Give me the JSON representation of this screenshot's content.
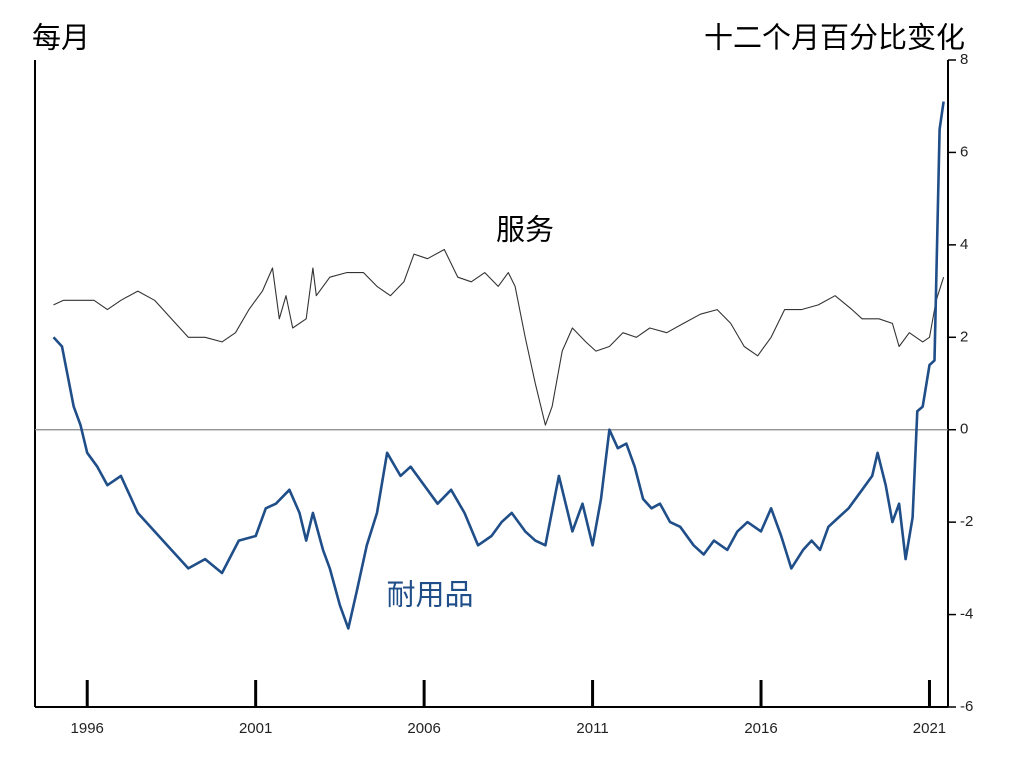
{
  "chart_data": {
    "type": "line",
    "subtitle": "每月",
    "ylabel": "十二个月百分比变化",
    "xlim": [
      1994.45,
      2021.55
    ],
    "xticks": [
      1996,
      2001,
      2006,
      2011,
      2016,
      2021
    ],
    "ylim": [
      -6,
      8
    ],
    "yticks": [
      -6,
      -4,
      -2,
      0,
      2,
      4,
      6,
      8
    ],
    "series": [
      {
        "name": "服务",
        "color": "#333333",
        "x": [
          1995.0,
          1995.3,
          1995.7,
          1996.2,
          1996.6,
          1997.0,
          1997.5,
          1998.0,
          1998.5,
          1999.0,
          1999.5,
          2000.0,
          2000.4,
          2000.8,
          2001.2,
          2001.5,
          2001.7,
          2001.9,
          2002.1,
          2002.5,
          2002.7,
          2002.8,
          2003.2,
          2003.7,
          2004.2,
          2004.6,
          2005.0,
          2005.4,
          2005.7,
          2006.1,
          2006.6,
          2007.0,
          2007.4,
          2007.8,
          2008.2,
          2008.5,
          2008.7,
          2009.0,
          2009.3,
          2009.6,
          2009.8,
          2010.1,
          2010.4,
          2010.8,
          2011.1,
          2011.5,
          2011.9,
          2012.3,
          2012.7,
          2013.2,
          2013.7,
          2014.2,
          2014.7,
          2015.1,
          2015.5,
          2015.9,
          2016.3,
          2016.7,
          2017.2,
          2017.7,
          2018.2,
          2018.7,
          2019.0,
          2019.5,
          2019.9,
          2020.1,
          2020.4,
          2020.8,
          2021.0,
          2021.2,
          2021.42
        ],
        "values": [
          2.7,
          2.8,
          2.8,
          2.8,
          2.6,
          2.8,
          3.0,
          2.8,
          2.4,
          2.0,
          2.0,
          1.9,
          2.1,
          2.6,
          3.0,
          3.5,
          2.4,
          2.9,
          2.2,
          2.4,
          3.5,
          2.9,
          3.3,
          3.4,
          3.4,
          3.1,
          2.9,
          3.2,
          3.8,
          3.7,
          3.9,
          3.3,
          3.2,
          3.4,
          3.1,
          3.4,
          3.1,
          2.0,
          1.0,
          0.1,
          0.5,
          1.7,
          2.2,
          1.9,
          1.7,
          1.8,
          2.1,
          2.0,
          2.2,
          2.1,
          2.3,
          2.5,
          2.6,
          2.3,
          1.8,
          1.6,
          2.0,
          2.6,
          2.6,
          2.7,
          2.9,
          2.6,
          2.4,
          2.4,
          2.3,
          1.8,
          2.1,
          1.9,
          2.0,
          2.8,
          3.3
        ]
      },
      {
        "name": "耐用品",
        "color": "#1f4e89",
        "x": [
          1995.0,
          1995.25,
          1995.6,
          1995.8,
          1996.0,
          1996.3,
          1996.6,
          1997.0,
          1997.5,
          1998.0,
          1998.5,
          1999.0,
          1999.5,
          2000.0,
          2000.5,
          2001.0,
          2001.3,
          2001.6,
          2002.0,
          2002.3,
          2002.5,
          2002.7,
          2003.0,
          2003.2,
          2003.5,
          2003.75,
          2004.0,
          2004.3,
          2004.6,
          2004.9,
          2005.3,
          2005.6,
          2006.0,
          2006.4,
          2006.8,
          2007.2,
          2007.6,
          2008.0,
          2008.3,
          2008.6,
          2009.0,
          2009.3,
          2009.6,
          2010.0,
          2010.4,
          2010.7,
          2011.0,
          2011.25,
          2011.5,
          2011.75,
          2012.0,
          2012.25,
          2012.5,
          2012.75,
          2013.0,
          2013.3,
          2013.6,
          2014.0,
          2014.3,
          2014.6,
          2015.0,
          2015.3,
          2015.6,
          2016.0,
          2016.3,
          2016.6,
          2016.9,
          2017.25,
          2017.5,
          2017.75,
          2018.0,
          2018.3,
          2018.6,
          2019.0,
          2019.3,
          2019.46,
          2019.7,
          2019.9,
          2020.1,
          2020.29,
          2020.5,
          2020.64,
          2020.8,
          2021.0,
          2021.15,
          2021.3,
          2021.42
        ],
        "values": [
          2.0,
          1.8,
          0.5,
          0.1,
          -0.5,
          -0.8,
          -1.2,
          -1.0,
          -1.8,
          -2.2,
          -2.6,
          -3.0,
          -2.8,
          -3.1,
          -2.4,
          -2.3,
          -1.7,
          -1.6,
          -1.3,
          -1.8,
          -2.4,
          -1.8,
          -2.6,
          -3.0,
          -3.8,
          -4.3,
          -3.5,
          -2.5,
          -1.8,
          -0.5,
          -1.0,
          -0.8,
          -1.2,
          -1.6,
          -1.3,
          -1.8,
          -2.5,
          -2.3,
          -2.0,
          -1.8,
          -2.2,
          -2.4,
          -2.5,
          -1.0,
          -2.2,
          -1.6,
          -2.5,
          -1.5,
          0.0,
          -0.4,
          -0.3,
          -0.8,
          -1.5,
          -1.7,
          -1.6,
          -2.0,
          -2.1,
          -2.5,
          -2.7,
          -2.4,
          -2.6,
          -2.2,
          -2.0,
          -2.2,
          -1.7,
          -2.3,
          -3.0,
          -2.6,
          -2.4,
          -2.6,
          -2.1,
          -1.9,
          -1.7,
          -1.3,
          -1.0,
          -0.5,
          -1.2,
          -2.0,
          -1.6,
          -2.8,
          -1.9,
          0.4,
          0.5,
          1.4,
          1.5,
          6.5,
          7.1
        ]
      }
    ]
  }
}
